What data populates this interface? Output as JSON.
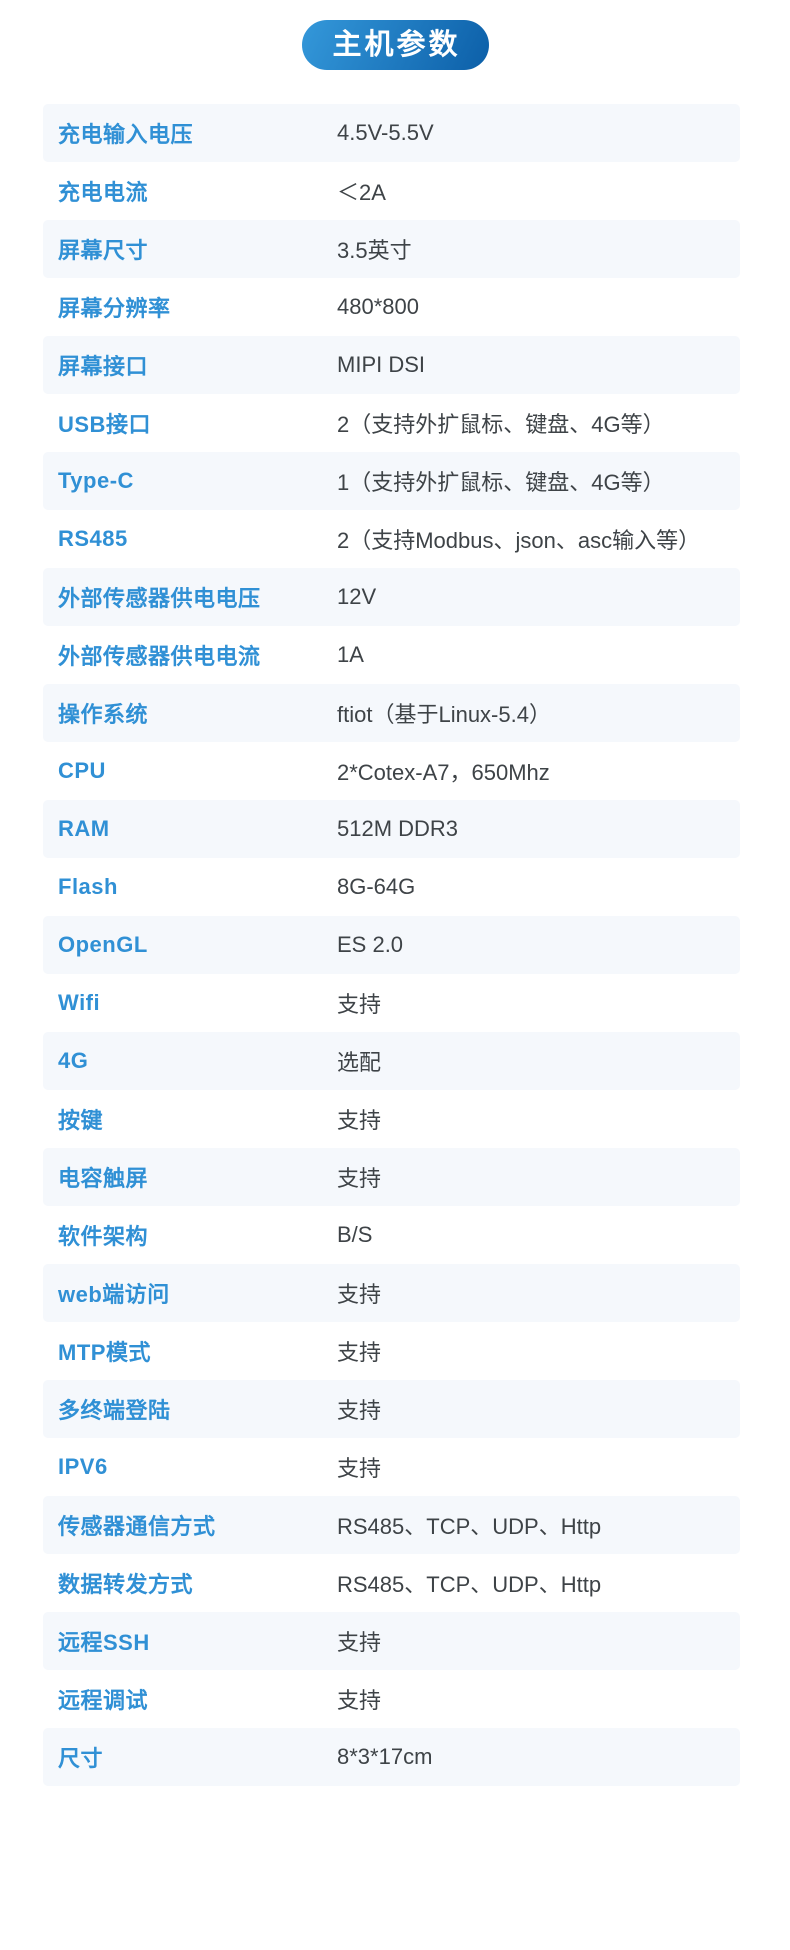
{
  "header": {
    "title": "主机参数"
  },
  "colors": {
    "pill_gradient_start": "#3498da",
    "pill_gradient_end": "#0c5fa8",
    "label_blue": "#3090d5",
    "value_text": "#3e4347",
    "row_stripe": "#f5f8fc",
    "page_background": "#ffffff"
  },
  "table": {
    "rows": [
      {
        "label": "充电输入电压",
        "value": "4.5V-5.5V"
      },
      {
        "label": "充电电流",
        "value": "＜2A"
      },
      {
        "label": "屏幕尺寸",
        "value": "3.5英寸"
      },
      {
        "label": "屏幕分辨率",
        "value": "480*800"
      },
      {
        "label": "屏幕接口",
        "value": "MIPI DSI"
      },
      {
        "label": "USB接口",
        "value": "2（支持外扩鼠标、键盘、4G等）"
      },
      {
        "label": "Type-C",
        "value": "1（支持外扩鼠标、键盘、4G等）"
      },
      {
        "label": "RS485",
        "value": "2（支持Modbus、json、asc输入等）"
      },
      {
        "label": "外部传感器供电电压",
        "value": "12V"
      },
      {
        "label": "外部传感器供电电流",
        "value": "1A"
      },
      {
        "label": "操作系统",
        "value": "ftiot（基于Linux-5.4）"
      },
      {
        "label": "CPU",
        "value": "2*Cotex-A7，650Mhz"
      },
      {
        "label": "RAM",
        "value": "512M DDR3"
      },
      {
        "label": "Flash",
        "value": "8G-64G"
      },
      {
        "label": "OpenGL",
        "value": "ES 2.0"
      },
      {
        "label": "Wifi",
        "value": "支持"
      },
      {
        "label": "4G",
        "value": "选配"
      },
      {
        "label": "按键",
        "value": "支持"
      },
      {
        "label": "电容触屏",
        "value": "支持"
      },
      {
        "label": "软件架构",
        "value": "B/S"
      },
      {
        "label": "web端访问",
        "value": "支持"
      },
      {
        "label": "MTP模式",
        "value": "支持"
      },
      {
        "label": "多终端登陆",
        "value": "支持"
      },
      {
        "label": "IPV6",
        "value": "支持"
      },
      {
        "label": "传感器通信方式",
        "value": "RS485、TCP、UDP、Http"
      },
      {
        "label": "数据转发方式",
        "value": "RS485、TCP、UDP、Http"
      },
      {
        "label": "远程SSH",
        "value": "支持"
      },
      {
        "label": "远程调试",
        "value": "支持"
      },
      {
        "label": "尺寸",
        "value": "8*3*17cm"
      }
    ]
  }
}
